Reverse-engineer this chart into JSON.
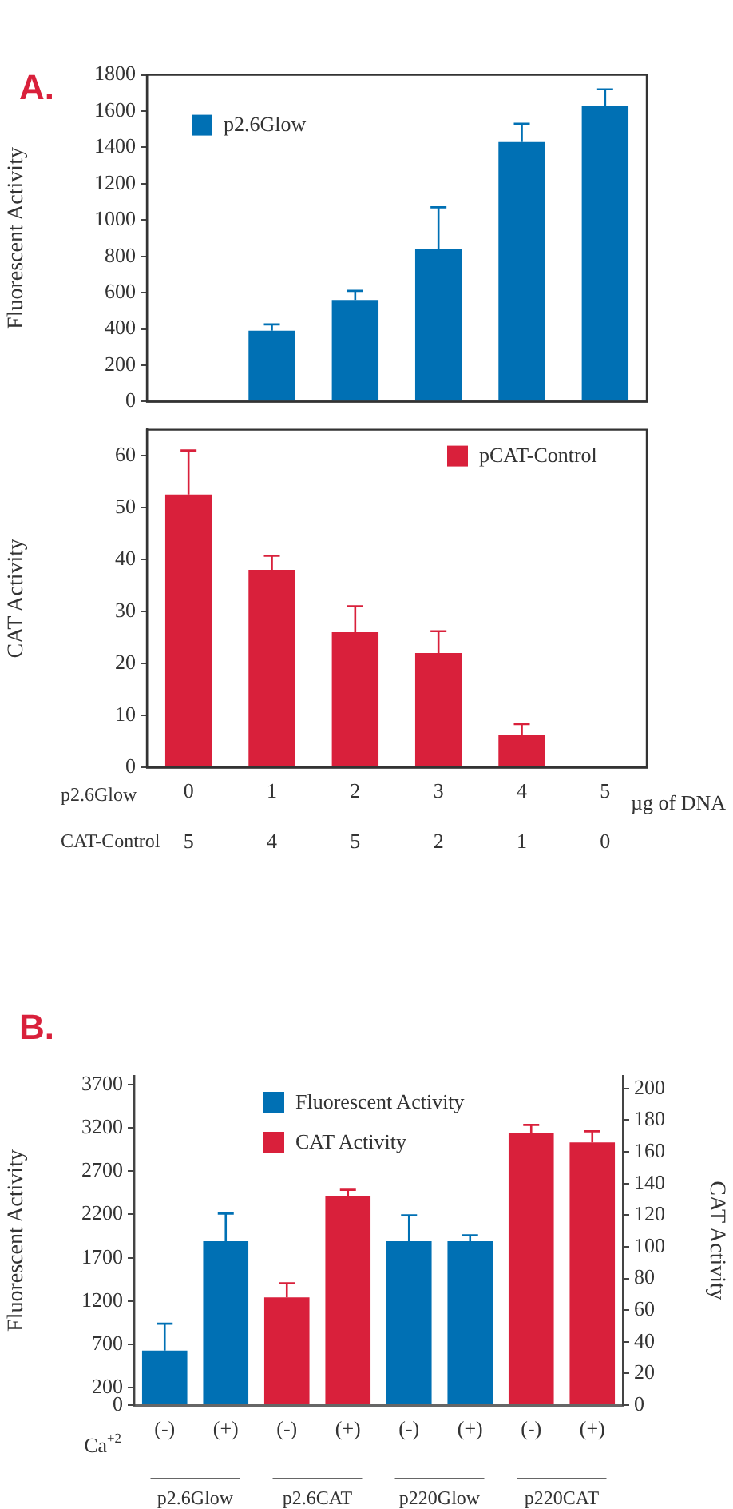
{
  "chart_data": [
    {
      "type": "bar",
      "title": "A.",
      "ylabel": "Fluorescent Activity",
      "categories": [
        null,
        null,
        null,
        null,
        null,
        null
      ],
      "tick_labels": "y",
      "legend": "top left",
      "grid": false,
      "ylim": [
        0,
        1800
      ],
      "yticks": [
        0,
        200,
        400,
        600,
        800,
        1000,
        1200,
        1400,
        1600,
        1800
      ],
      "series": [
        {
          "name": "p2.6Glow",
          "color": "#0070b4",
          "values": [
            null,
            390,
            560,
            840,
            1430,
            1630
          ],
          "errors": [
            null,
            [
              390,
              425
            ],
            [
              560,
              610
            ],
            [
              840,
              1070
            ],
            [
              1430,
              1530
            ],
            [
              1630,
              1720
            ]
          ]
        }
      ]
    },
    {
      "type": "bar",
      "ylabel": "CAT Activity",
      "categories": [
        "0",
        "1",
        "2",
        "3",
        "4",
        "5"
      ],
      "legend": "top right",
      "grid": false,
      "ylim": [
        0,
        65
      ],
      "yticks": [
        0,
        10,
        20,
        30,
        40,
        50,
        60
      ],
      "series": [
        {
          "name": "pCAT-Control",
          "color": "#d9203b",
          "values": [
            52.5,
            38,
            26,
            22,
            6.2,
            null
          ],
          "errors": [
            [
              52.5,
              61
            ],
            [
              38,
              40.7
            ],
            [
              26,
              31
            ],
            [
              22,
              26.2
            ],
            [
              6.2,
              8.3
            ],
            null
          ]
        }
      ],
      "annotations": [
        "p2.6Glow",
        "µg of DNA",
        "CAT-Control",
        "5",
        "4",
        "5",
        "2",
        "1",
        "0"
      ]
    },
    {
      "type": "bar",
      "title": "B.",
      "ylabel": "Fluorescent Activity",
      "y2label": "CAT Activity",
      "categories": [
        "(-)",
        "(+)",
        "(-)",
        "(+)",
        "(-)",
        "(+)",
        "(-)",
        "(+)"
      ],
      "legend": "top",
      "grid": false,
      "ylim": [
        0,
        3800
      ],
      "yticks": [
        0,
        200,
        700,
        1200,
        1700,
        2200,
        2700,
        3200,
        3700
      ],
      "y2lim": [
        0,
        208
      ],
      "y2ticks": [
        0,
        20,
        40,
        60,
        80,
        100,
        120,
        140,
        160,
        180,
        200
      ],
      "series": [
        {
          "name": "Fluorescent Activity",
          "color": "#0070b4",
          "values": [
            630,
            1890,
            null,
            null,
            1890,
            1890,
            null,
            null
          ],
          "errors": [
            [
              630,
              940
            ],
            [
              1890,
              2210
            ],
            null,
            null,
            [
              1890,
              2190
            ],
            [
              1890,
              1960
            ],
            null,
            null
          ]
        },
        {
          "name": "CAT Activity",
          "color": "#d9203b",
          "axis": "y2",
          "values": [
            null,
            null,
            68,
            132,
            null,
            null,
            172,
            166
          ],
          "errors": [
            null,
            null,
            [
              68,
              77
            ],
            [
              132,
              136
            ],
            null,
            null,
            [
              172,
              177
            ],
            [
              166,
              173
            ]
          ]
        }
      ],
      "annotations": [
        "Ca$^{+2}$",
        "p2.6Glow",
        "p2.6CAT",
        "p220Glow",
        "p220CAT"
      ]
    }
  ]
}
